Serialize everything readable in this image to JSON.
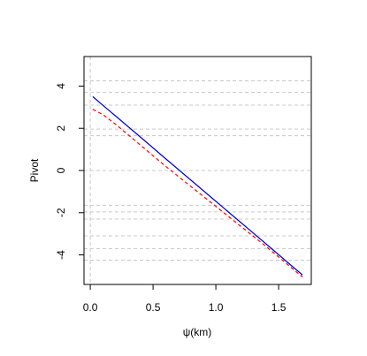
{
  "chart_data": {
    "type": "line",
    "xlabel": "ψ(km)",
    "ylabel": "Pivot",
    "x": [
      0.02,
      0.1,
      0.2,
      0.4,
      0.6,
      0.8,
      1.0,
      1.2,
      1.4,
      1.6,
      1.69
    ],
    "series": [
      {
        "color": "#0000cc",
        "dash": false,
        "values": [
          3.5,
          3.09,
          2.59,
          1.58,
          0.56,
          -0.45,
          -1.46,
          -2.47,
          -3.48,
          -4.5,
          -4.95
        ]
      },
      {
        "color": "#ff0000",
        "dash": true,
        "values": [
          2.9,
          2.65,
          2.2,
          1.2,
          0.2,
          -0.75,
          -1.7,
          -2.65,
          -3.6,
          -4.6,
          -5.05
        ]
      }
    ],
    "xlim": [
      -0.05,
      1.76
    ],
    "ylim": [
      -5.4,
      5.4
    ],
    "xticks": [
      {
        "value": 0,
        "label": "0.0"
      },
      {
        "value": 0.5,
        "label": "0.5"
      },
      {
        "value": 1,
        "label": "1.0"
      },
      {
        "value": 1.5,
        "label": "1.5"
      }
    ],
    "yticks": [
      -4,
      -2,
      0,
      2,
      4
    ],
    "hlines": [
      4.25,
      3.7,
      3.1,
      1.96,
      1.65,
      0,
      -1.65,
      -1.96,
      -2.3,
      -3.1,
      -3.7,
      -4.25
    ],
    "vlines": [
      0
    ],
    "refline_color": "#c8c8c8"
  }
}
